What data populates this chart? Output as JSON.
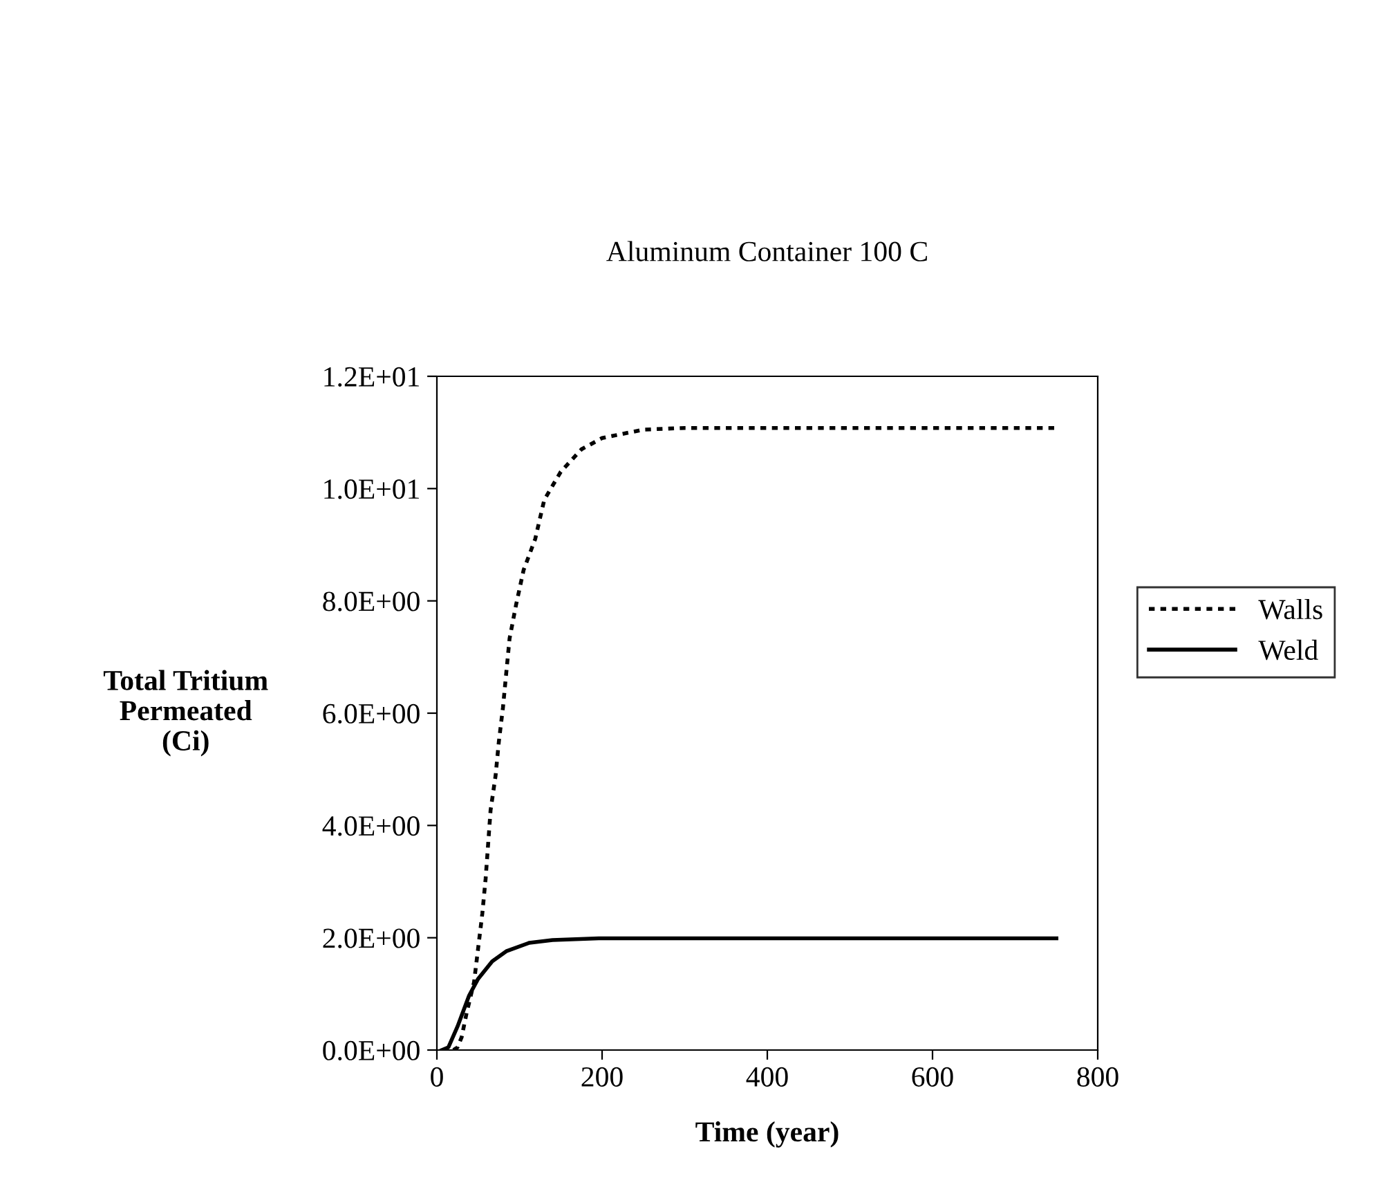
{
  "chart_data": {
    "type": "line",
    "title": "Aluminum Container 100 C",
    "xlabel": "Time (year)",
    "ylabel": "Total Tritium\nPermeated\n(Ci)",
    "xlim": [
      0,
      800
    ],
    "xticks": [
      0,
      200,
      400,
      600,
      800
    ],
    "ylim": [
      0,
      12
    ],
    "yticks": [
      {
        "value": 0,
        "label": "0.0E+00"
      },
      {
        "value": 2,
        "label": "2.0E+00"
      },
      {
        "value": 4,
        "label": "4.0E+00"
      },
      {
        "value": 6,
        "label": "6.0E+00"
      },
      {
        "value": 8,
        "label": "8.0E+00"
      },
      {
        "value": 10,
        "label": "1.0E+01"
      },
      {
        "value": 12,
        "label": "1.2E+01"
      }
    ],
    "grid": false,
    "legend": "right",
    "series": [
      {
        "name": "Walls",
        "color": "#000000",
        "line_style": "dotted",
        "x": [
          20,
          25,
          30,
          36,
          45,
          50,
          55,
          59,
          62,
          65,
          71,
          75,
          80,
          84,
          88,
          96,
          105,
          119,
          130,
          150,
          175,
          200,
          250,
          300,
          750
        ],
        "values": [
          0,
          0.05,
          0.23,
          0.66,
          1.21,
          1.82,
          2.43,
          3.05,
          3.66,
          4.27,
          4.88,
          5.49,
          6.1,
          6.72,
          7.33,
          7.94,
          8.55,
          9.1,
          9.8,
          10.3,
          10.7,
          10.9,
          11.05,
          11.08,
          11.08
        ]
      },
      {
        "name": "Weld",
        "color": "#000000",
        "line_style": "solid",
        "x": [
          6,
          14,
          25,
          39,
          50,
          67,
          84,
          112,
          140,
          196,
          750
        ],
        "values": [
          0,
          0.05,
          0.42,
          0.97,
          1.27,
          1.58,
          1.76,
          1.91,
          1.96,
          1.99,
          1.99
        ]
      }
    ]
  }
}
